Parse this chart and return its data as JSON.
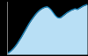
{
  "x": [
    0,
    1,
    2,
    3,
    4,
    5,
    6,
    7,
    8,
    9,
    10,
    11,
    12,
    13,
    14,
    15,
    16,
    17,
    18,
    19,
    20,
    21,
    22,
    23,
    24,
    25,
    26,
    27,
    28,
    29,
    30,
    31,
    32,
    33,
    34,
    35,
    36,
    37,
    38,
    39,
    40
  ],
  "y": [
    0.2,
    0.5,
    0.9,
    1.4,
    2.0,
    2.7,
    3.5,
    4.3,
    5.2,
    6.1,
    7.0,
    7.9,
    8.7,
    9.4,
    10.1,
    10.7,
    11.2,
    11.6,
    11.9,
    12.1,
    12.2,
    11.9,
    11.4,
    10.7,
    10.0,
    9.5,
    9.3,
    9.5,
    9.9,
    10.3,
    10.7,
    11.0,
    11.3,
    11.5,
    11.7,
    11.5,
    11.8,
    12.1,
    12.4,
    12.6,
    12.8
  ],
  "line_color": "#1e8bc3",
  "fill_color": "#b8dff5",
  "background_color": "#000000",
  "plot_bg_color": "#000000",
  "spine_color": "#999999",
  "ylim": [
    0,
    13.5
  ],
  "xlim": [
    0,
    40
  ]
}
